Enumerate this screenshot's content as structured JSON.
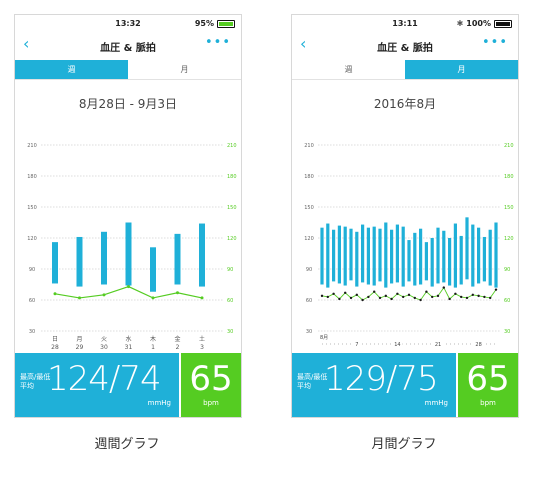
{
  "colors": {
    "accent": "#1fb0d8",
    "heart": "#55cc22",
    "battery_week": "#55cc22",
    "battery_month": "#111111"
  },
  "screens": [
    {
      "status": {
        "time": "13:32",
        "battery": "95%",
        "bluetooth": ""
      },
      "nav": {
        "back": "‹",
        "title": "血圧 & 脈拍",
        "more": "•••"
      },
      "tabs": [
        "週",
        "月"
      ],
      "active_tab": 0,
      "period": "8月28日 - 9月3日",
      "summary": {
        "label_line1": "最高/最低",
        "label_line2": "平均",
        "bp": "124/74",
        "bp_unit": "mmHg",
        "hr": "65",
        "hr_unit": "bpm"
      },
      "caption": "週間グラフ",
      "chart_data": {
        "type": "bar",
        "left_axis_ticks": [
          30,
          60,
          90,
          120,
          150,
          180,
          210
        ],
        "right_axis_ticks": [
          30,
          60,
          90,
          120,
          150,
          180,
          210
        ],
        "ylim": [
          30,
          210
        ],
        "x_labels": [
          {
            "day": "日",
            "date": "28"
          },
          {
            "day": "月",
            "date": "29"
          },
          {
            "day": "火",
            "date": "30"
          },
          {
            "day": "水",
            "date": "31"
          },
          {
            "day": "木",
            "date": "1"
          },
          {
            "day": "金",
            "date": "2"
          },
          {
            "day": "土",
            "date": "3"
          }
        ],
        "bp_ranges": [
          [
            76,
            116
          ],
          [
            73,
            121
          ],
          [
            75,
            126
          ],
          [
            74,
            135
          ],
          [
            68,
            111
          ],
          [
            75,
            124
          ],
          [
            73,
            134
          ]
        ],
        "pulse": [
          66,
          62,
          65,
          73,
          62,
          67,
          62
        ]
      }
    },
    {
      "status": {
        "time": "13:11",
        "battery": "100%",
        "bluetooth": "✱"
      },
      "nav": {
        "back": "‹",
        "title": "血圧 & 脈拍",
        "more": "•••"
      },
      "tabs": [
        "週",
        "月"
      ],
      "active_tab": 1,
      "period": "2016年8月",
      "summary": {
        "label_line1": "最高/最低",
        "label_line2": "平均",
        "bp": "129/75",
        "bp_unit": "mmHg",
        "hr": "65",
        "hr_unit": "bpm"
      },
      "caption": "月間グラフ",
      "chart_data": {
        "type": "bar",
        "left_axis_ticks": [
          30,
          60,
          90,
          120,
          150,
          180,
          210
        ],
        "right_axis_ticks": [
          30,
          60,
          90,
          120,
          150,
          180,
          210
        ],
        "ylim": [
          30,
          210
        ],
        "month_label": "8月",
        "day_marks": [
          "7",
          "14",
          "21",
          "28"
        ],
        "bp_ranges": [
          [
            75,
            130
          ],
          [
            72,
            134
          ],
          [
            78,
            128
          ],
          [
            76,
            132
          ],
          [
            74,
            131
          ],
          [
            79,
            129
          ],
          [
            73,
            126
          ],
          [
            77,
            133
          ],
          [
            75,
            130
          ],
          [
            74,
            131
          ],
          [
            78,
            129
          ],
          [
            72,
            135
          ],
          [
            76,
            128
          ],
          [
            77,
            133
          ],
          [
            73,
            131
          ],
          [
            78,
            118
          ],
          [
            74,
            125
          ],
          [
            75,
            129
          ],
          [
            79,
            116
          ],
          [
            73,
            120
          ],
          [
            76,
            130
          ],
          [
            77,
            127
          ],
          [
            74,
            120
          ],
          [
            72,
            134
          ],
          [
            75,
            122
          ],
          [
            80,
            140
          ],
          [
            73,
            133
          ],
          [
            76,
            130
          ],
          [
            78,
            121
          ],
          [
            74,
            128
          ],
          [
            72,
            135
          ]
        ],
        "pulse": [
          64,
          63,
          66,
          61,
          67,
          62,
          65,
          60,
          63,
          68,
          62,
          64,
          61,
          66,
          63,
          65,
          62,
          60,
          68,
          63,
          64,
          72,
          61,
          66,
          63,
          62,
          65,
          64,
          63,
          62,
          70
        ]
      }
    }
  ]
}
